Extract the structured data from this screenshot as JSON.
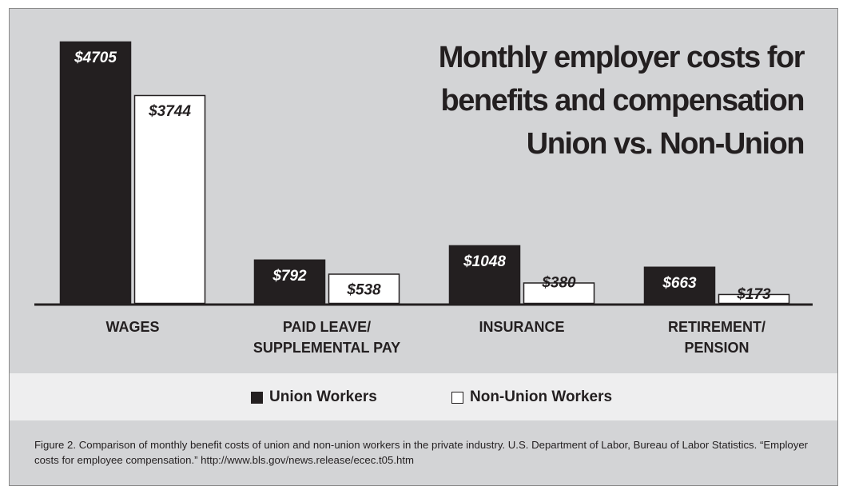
{
  "chart_data": {
    "type": "bar",
    "title": [
      "Monthly employer costs for",
      "benefits and compensation",
      "Union vs. Non-Union"
    ],
    "categories": [
      [
        "WAGES"
      ],
      [
        "PAID LEAVE/",
        "SUPPLEMENTAL PAY"
      ],
      [
        "INSURANCE"
      ],
      [
        "RETIREMENT/",
        "PENSION"
      ]
    ],
    "series": [
      {
        "name": "Union Workers",
        "color": "#231f20",
        "label_color": "#ffffff",
        "values": [
          4705,
          792,
          1048,
          663
        ],
        "labels": [
          "$4705",
          "$792",
          "$1048",
          "$663"
        ]
      },
      {
        "name": "Non-Union Workers",
        "color": "#ffffff",
        "label_color": "#231f20",
        "values": [
          3744,
          538,
          380,
          173
        ],
        "labels": [
          "$3744",
          "$538",
          "$380",
          "$173"
        ]
      }
    ],
    "ylim": [
      0,
      4705
    ],
    "grid": false,
    "legend_position": "bottom",
    "caption": "Figure 2. Comparison of monthly benefit costs of union and non-union workers in the private industry. U.S. Department of Labor, Bureau of Labor Statistics. “Employer costs for employee compensation.” http://www.bls.gov/news.release/ecec.t05.htm"
  }
}
